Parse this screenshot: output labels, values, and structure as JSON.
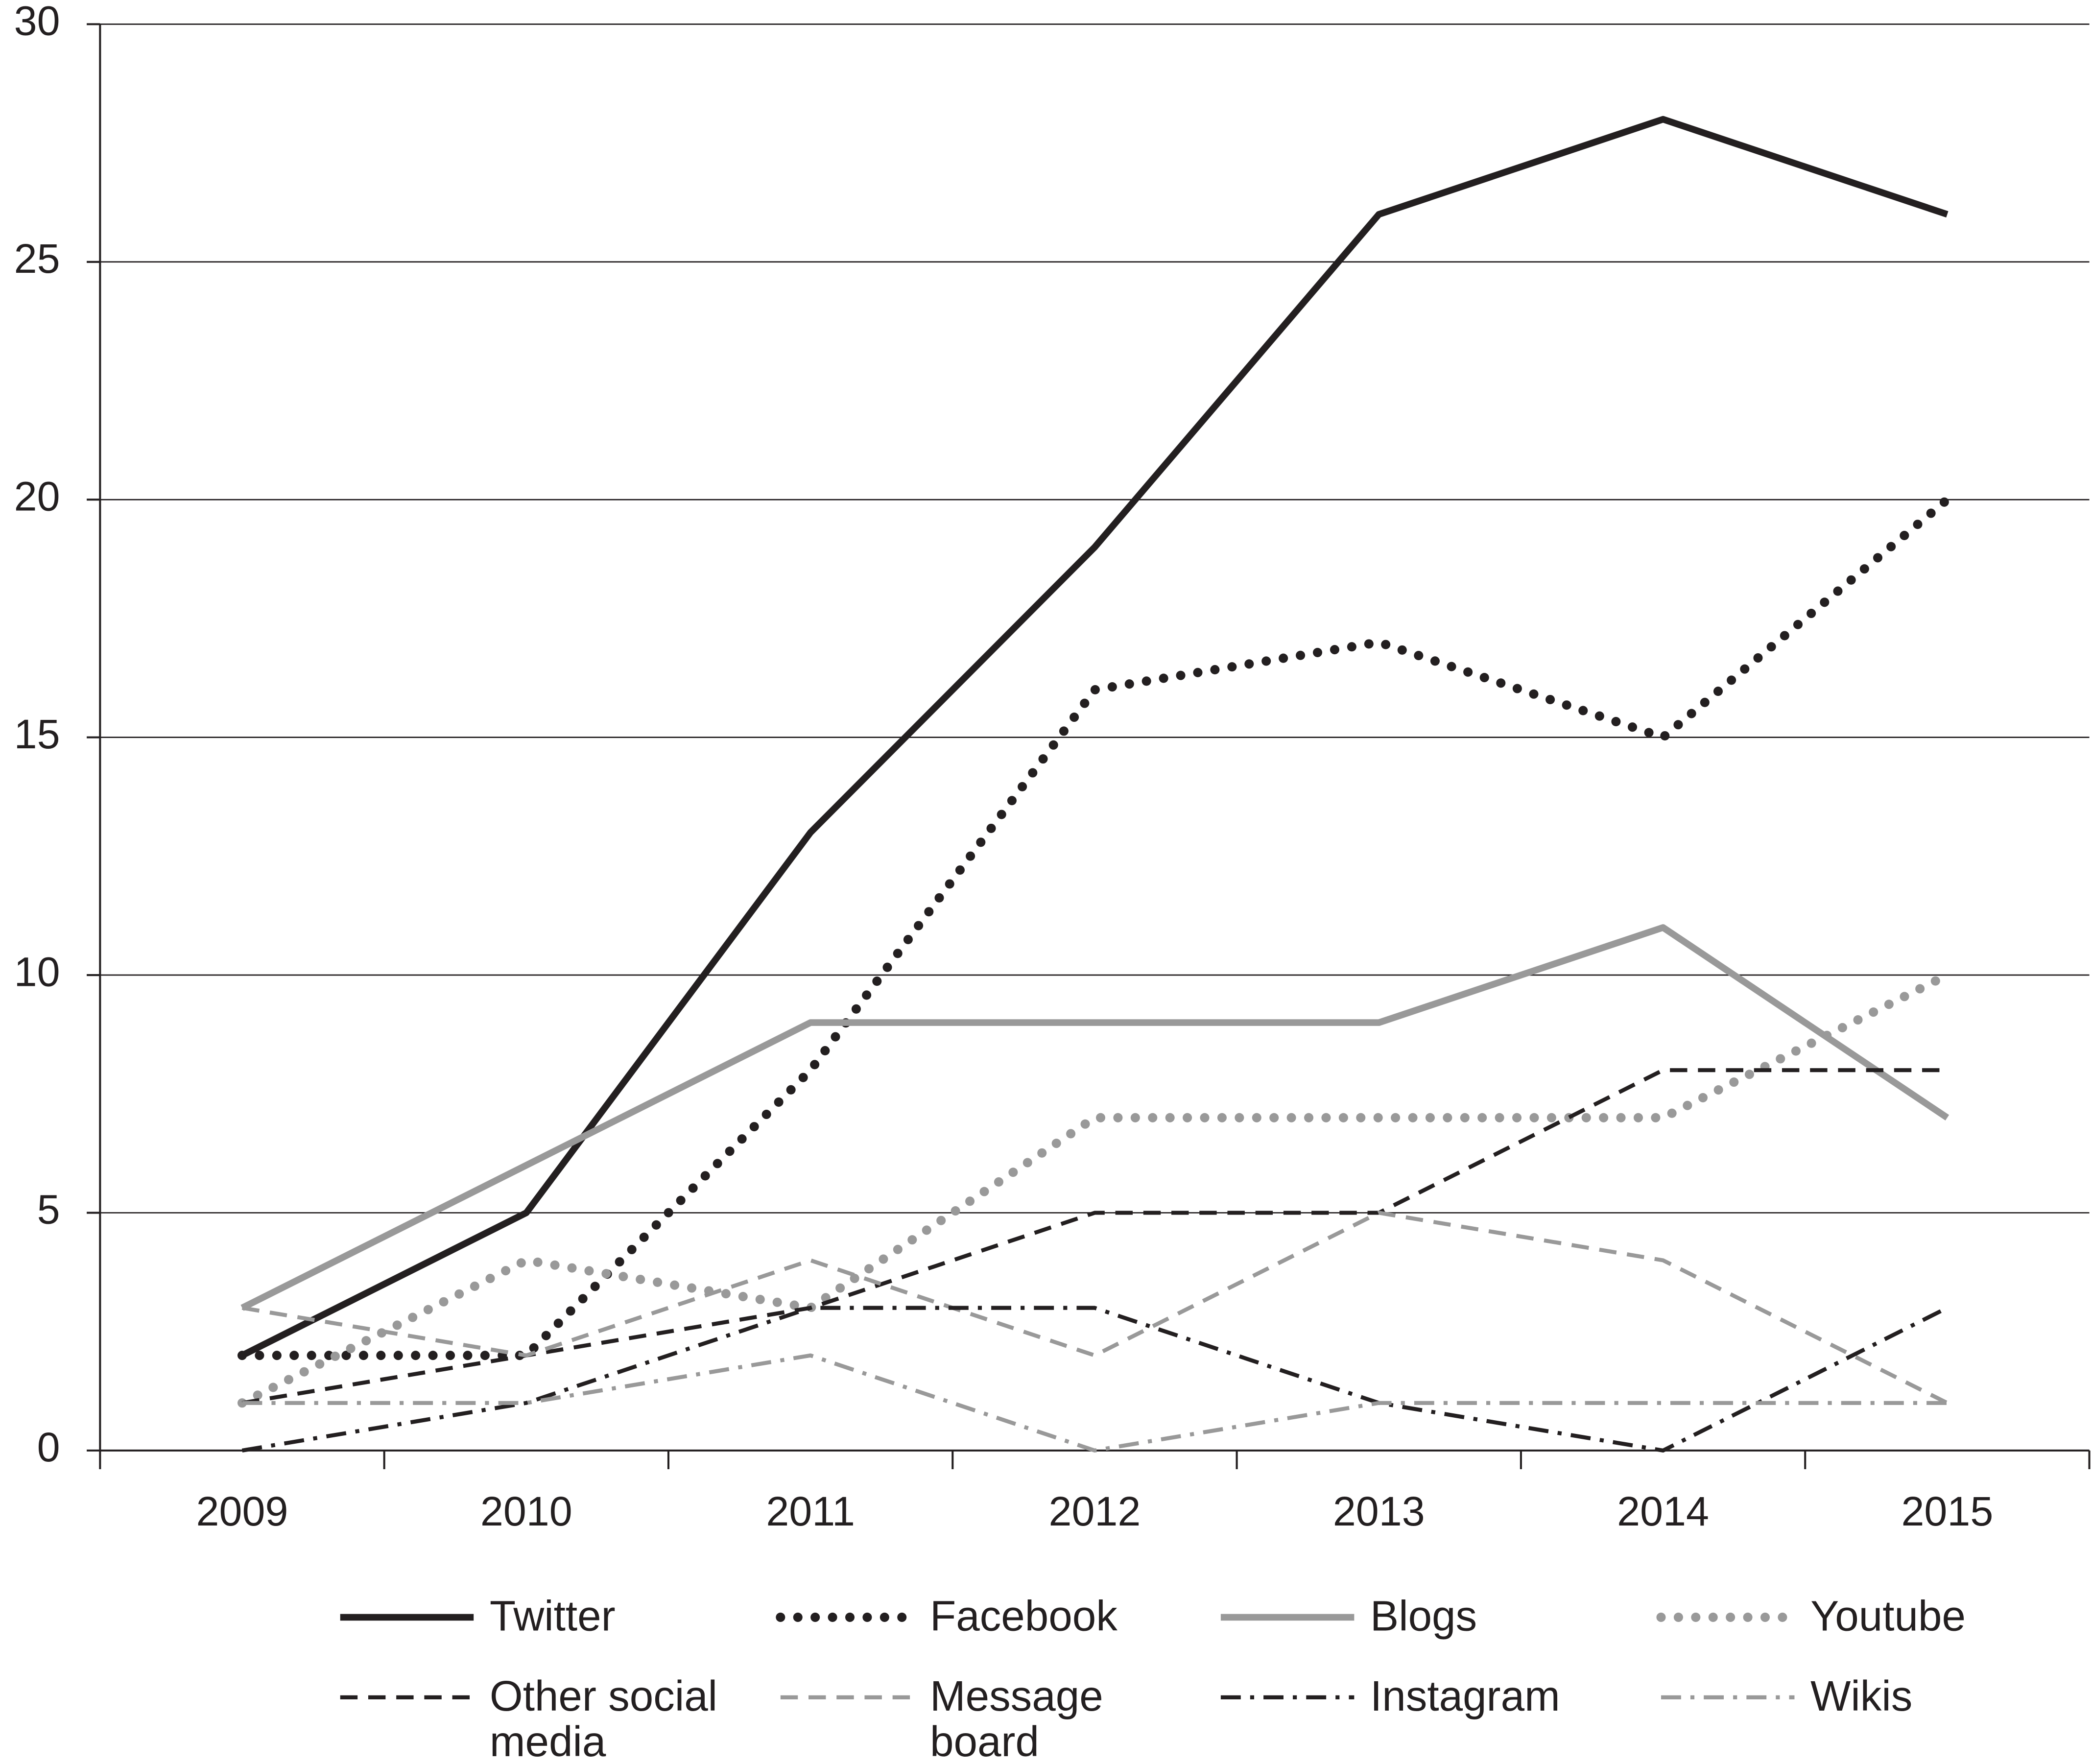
{
  "chart_data": {
    "type": "line",
    "categories": [
      "2009",
      "2010",
      "2011",
      "2012",
      "2013",
      "2014",
      "2015"
    ],
    "ylim": [
      0,
      30
    ],
    "yticks": [
      0,
      5,
      10,
      15,
      20,
      25,
      30
    ],
    "grid": true,
    "legend": "bottom",
    "series": [
      {
        "name": "Twitter",
        "color": "#231f20",
        "dash": "solid",
        "values": [
          2,
          5,
          13,
          19,
          26,
          28,
          26
        ]
      },
      {
        "name": "Facebook",
        "color": "#231f20",
        "dash": "dotted",
        "values": [
          2,
          2,
          8,
          16,
          17,
          15,
          20
        ]
      },
      {
        "name": "Blogs",
        "color": "#999999",
        "dash": "solid",
        "values": [
          3,
          6,
          9,
          9,
          9,
          11,
          7
        ]
      },
      {
        "name": "Youtube",
        "color": "#999999",
        "dash": "dotted",
        "values": [
          1,
          4,
          3,
          7,
          7,
          7,
          10
        ]
      },
      {
        "name": "Other social media",
        "color": "#231f20",
        "dash": "dashed",
        "values": [
          1,
          2,
          3,
          5,
          5,
          8,
          8
        ]
      },
      {
        "name": "Message board",
        "color": "#999999",
        "dash": "dashed",
        "values": [
          3,
          2,
          4,
          2,
          5,
          4,
          1
        ]
      },
      {
        "name": "Instagram",
        "color": "#231f20",
        "dash": "dashdot",
        "values": [
          0,
          1,
          3,
          3,
          1,
          0,
          3
        ]
      },
      {
        "name": "Wikis",
        "color": "#999999",
        "dash": "dashdot",
        "values": [
          1,
          1,
          2,
          0,
          1,
          1,
          1
        ]
      }
    ]
  }
}
